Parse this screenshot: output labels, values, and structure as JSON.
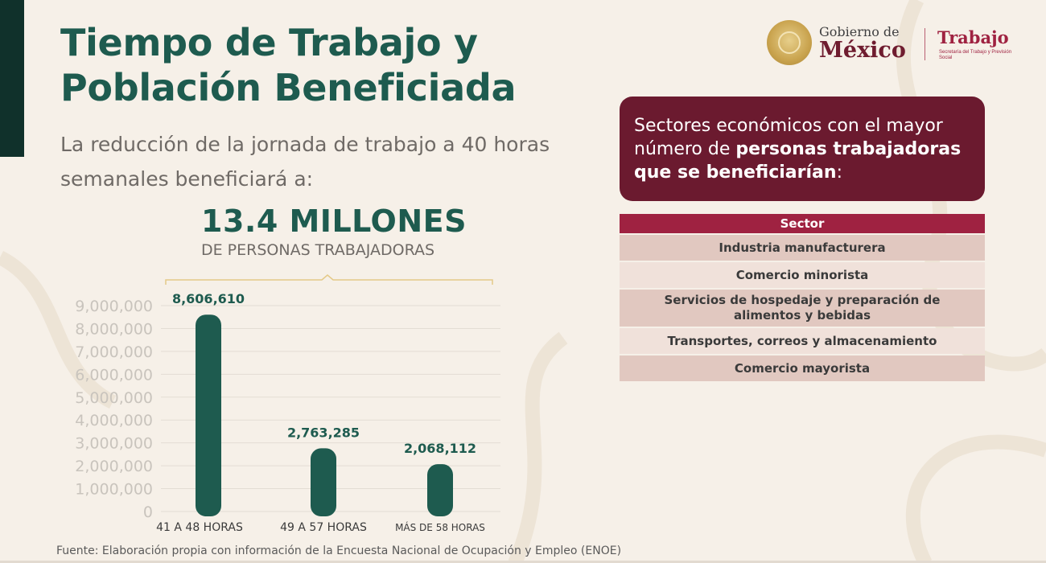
{
  "title_line1": "Tiempo de Trabajo y",
  "title_line2": "Población Beneficiada",
  "subtitle": "La reducción de la jornada de trabajo a 40 horas semanales beneficiará a:",
  "highlight": {
    "number": "13.4 MILLONES",
    "caption": "DE PERSONAS TRABAJADORAS"
  },
  "logo": {
    "gobierno": "Gobierno de",
    "mexico": "México",
    "dependencia": "Trabajo",
    "dependencia_sub": "Secretaría del Trabajo y Previsión Social"
  },
  "sectors_intro": {
    "text_plain": "Sectores económicos con el mayor número de ",
    "text_bold": "personas trabajadoras que se beneficiarían",
    "text_end": ":"
  },
  "sector_table": {
    "header": "Sector",
    "rows": [
      "Industria manufacturera",
      "Comercio minorista",
      "Servicios de hospedaje y preparación de alimentos y bebidas",
      "Transportes, correos y almacenamiento",
      "Comercio mayorista"
    ]
  },
  "colors": {
    "bar": "#1e5b4f",
    "grid": "#e3ddd4",
    "tick": "#c9c4bd",
    "data_label": "#1e5b4f",
    "accent_bracket": "#e4c988"
  },
  "chart_data": {
    "type": "bar",
    "categories": [
      "41 A 48 HORAS",
      "49 A 57 HORAS",
      "MÁS DE 58 HORAS"
    ],
    "values": [
      8606610,
      2763285,
      2068112
    ],
    "value_labels": [
      "8,606,610",
      "2,763,285",
      "2,068,112"
    ],
    "yticks": [
      0,
      1000000,
      2000000,
      3000000,
      4000000,
      5000000,
      6000000,
      7000000,
      8000000,
      9000000
    ],
    "ytick_labels": [
      "0",
      "1,000,000",
      "2,000,000",
      "3,000,000",
      "4,000,000",
      "5,000,000",
      "6,000,000",
      "7,000,000",
      "8,000,000",
      "9,000,000"
    ],
    "ylim": [
      0,
      9000000
    ],
    "grid": true,
    "legend": "none"
  },
  "source": "Fuente: Elaboración propia con información de la Encuesta Nacional de Ocupación y Empleo (ENOE)"
}
